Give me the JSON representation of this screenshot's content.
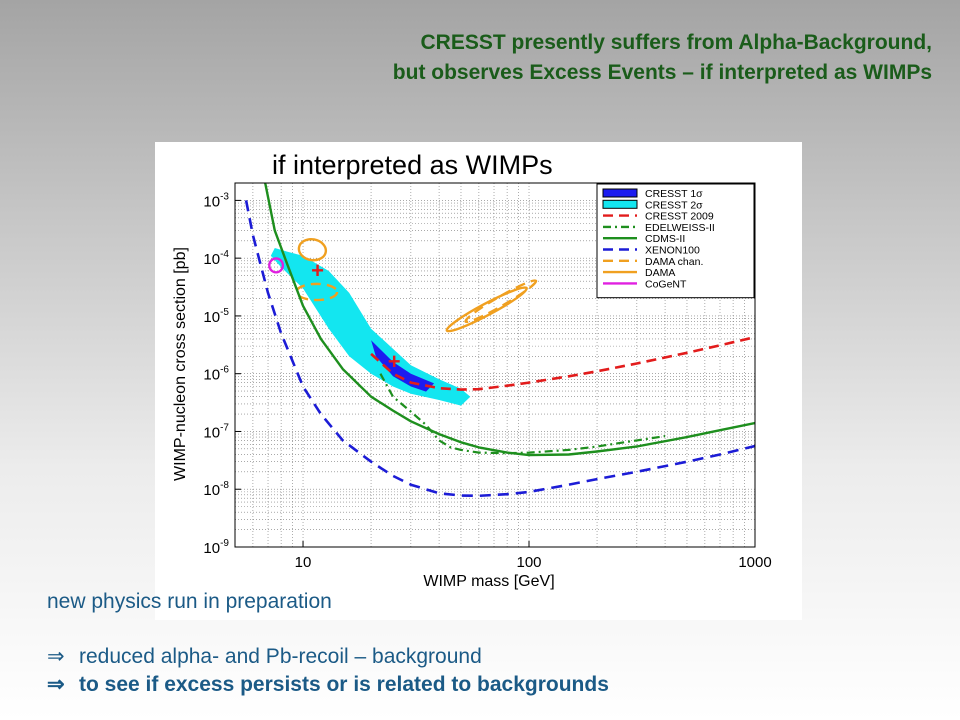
{
  "title_lines": [
    "CRESST presently suffers from Alpha-Background,",
    "but observes Excess Events – if interpreted as WIMPs"
  ],
  "chart_data": {
    "type": "line",
    "title": "if interpreted as WIMPs",
    "xlabel": "WIMP mass [GeV]",
    "ylabel": "WIMP-nucleon cross section [pb]",
    "xscale": "log",
    "yscale": "log",
    "xlim": [
      5,
      1000
    ],
    "ylim": [
      1e-09,
      0.002
    ],
    "x_ticks": [
      10,
      100,
      1000
    ],
    "x_tick_labels": [
      "10",
      "100",
      "1000"
    ],
    "y_ticks": [
      1e-09,
      1e-08,
      1e-07,
      1e-06,
      1e-05,
      0.0001,
      0.001
    ],
    "y_tick_labels": [
      {
        "base": "10",
        "exp": "-9"
      },
      {
        "base": "10",
        "exp": "-8"
      },
      {
        "base": "10",
        "exp": "-7"
      },
      {
        "base": "10",
        "exp": "-6"
      },
      {
        "base": "10",
        "exp": "-5"
      },
      {
        "base": "10",
        "exp": "-4"
      },
      {
        "base": "10",
        "exp": "-3"
      }
    ],
    "grid": true,
    "legend_position": "top-right",
    "legend": [
      {
        "label": "CRESST 1",
        "symbol": "σ",
        "kind": "fill",
        "fill": "#1c1cf0",
        "stroke": "#000000"
      },
      {
        "label": "CRESST 2",
        "symbol": "σ",
        "kind": "fill",
        "fill": "#13e6f0",
        "stroke": "#000000"
      },
      {
        "label": "CRESST 2009",
        "symbol": "",
        "kind": "line",
        "color": "#e21c1c",
        "dash": "10,6"
      },
      {
        "label": "EDELWEISS-II",
        "symbol": "",
        "kind": "line",
        "color": "#1e8f1e",
        "dash": "8,4,2,4"
      },
      {
        "label": "CDMS-II",
        "symbol": "",
        "kind": "line",
        "color": "#1e8f1e",
        "dash": ""
      },
      {
        "label": "XENON100",
        "symbol": "",
        "kind": "line",
        "color": "#1c1cd6",
        "dash": "10,6"
      },
      {
        "label": "DAMA chan.",
        "symbol": "",
        "kind": "line",
        "color": "#f0a020",
        "dash": "10,6"
      },
      {
        "label": "DAMA",
        "symbol": "",
        "kind": "line",
        "color": "#f0a020",
        "dash": ""
      },
      {
        "label": "CoGeNT",
        "symbol": "",
        "kind": "line",
        "color": "#e020e0",
        "dash": ""
      }
    ],
    "series": [
      {
        "name": "CRESST 2009",
        "color": "#e21c1c",
        "dash": "10,6",
        "width": 2.6,
        "x": [
          20,
          25,
          30,
          40,
          50,
          60,
          80,
          100,
          150,
          200,
          300,
          500,
          700,
          1000
        ],
        "y": [
          2.2e-06,
          1e-06,
          7e-07,
          5.6e-07,
          5.3e-07,
          5.4e-07,
          6.2e-07,
          7e-07,
          9e-07,
          1.1e-06,
          1.5e-06,
          2.3e-06,
          3.1e-06,
          4.3e-06
        ]
      },
      {
        "name": "EDELWEISS-II",
        "color": "#1e8f1e",
        "dash": "8,4,2,4",
        "width": 2.2,
        "x": [
          22,
          25,
          30,
          35,
          40,
          45,
          50,
          60,
          80,
          100,
          150,
          200,
          300,
          400
        ],
        "y": [
          1e-06,
          4e-07,
          2.2e-07,
          1.3e-07,
          7e-08,
          5.3e-08,
          4.8e-08,
          4.3e-08,
          4.2e-08,
          4.3e-08,
          4.8e-08,
          5.5e-08,
          7e-08,
          8.3e-08
        ]
      },
      {
        "name": "CDMS-II",
        "color": "#1e8f1e",
        "dash": "",
        "width": 2.4,
        "x": [
          6.8,
          7.5,
          8.5,
          10,
          12,
          15,
          20,
          25,
          30,
          40,
          50,
          60,
          80,
          100,
          150,
          200,
          300,
          500,
          700,
          1000
        ],
        "y": [
          0.002,
          0.0003,
          8e-05,
          1.5e-05,
          4e-06,
          1.2e-06,
          4e-07,
          2.3e-07,
          1.5e-07,
          9e-08,
          6.5e-08,
          5.3e-08,
          4.3e-08,
          3.9e-08,
          4e-08,
          4.5e-08,
          5.5e-08,
          8e-08,
          1.05e-07,
          1.4e-07
        ]
      },
      {
        "name": "XENON100",
        "color": "#1c1cd6",
        "dash": "11,7",
        "width": 2.6,
        "x": [
          5.6,
          6,
          7,
          8,
          10,
          12,
          15,
          20,
          25,
          30,
          40,
          50,
          60,
          80,
          100,
          150,
          200,
          300,
          500,
          700,
          1000
        ],
        "y": [
          0.001,
          0.00025,
          2.5e-05,
          5e-06,
          6e-07,
          2e-07,
          7e-08,
          3e-08,
          1.7e-08,
          1.2e-08,
          8.5e-09,
          7.8e-09,
          7.7e-09,
          8.2e-09,
          9e-09,
          1.2e-08,
          1.5e-08,
          2e-08,
          3e-08,
          4e-08,
          5.6e-08
        ]
      }
    ],
    "regions": [
      {
        "name": "CRESST 2σ",
        "color": "#13e6f0",
        "x": [
          7.5,
          8.5,
          10,
          13,
          16,
          20,
          30,
          40,
          50,
          55,
          50,
          40,
          30,
          25,
          20,
          16,
          13,
          10,
          8,
          7.2
        ],
        "y": [
          0.00015,
          0.00013,
          0.00011,
          6e-05,
          2.5e-05,
          6e-06,
          1.4e-06,
          8e-07,
          5.5e-07,
          4e-07,
          2.8e-07,
          3.5e-07,
          4.5e-07,
          6e-07,
          1e-06,
          2e-06,
          6e-06,
          3e-05,
          7e-05,
          0.00011
        ]
      },
      {
        "name": "CRESST 1σ",
        "color": "#1c1cf0",
        "x": [
          20,
          25,
          30,
          38,
          35,
          30,
          25,
          21
        ],
        "y": [
          3.8e-06,
          1.6e-06,
          1e-06,
          6.8e-07,
          4.9e-07,
          6e-07,
          9e-07,
          2e-06
        ]
      }
    ],
    "outlines": [
      {
        "name": "DAMA",
        "color": "#f0a020",
        "dash": "",
        "shape": "ellipse",
        "center": [
          11,
          0.00014
        ],
        "rx_decades": 0.06,
        "ry_decades": 0.18,
        "rotate": 10
      },
      {
        "name": "DAMA",
        "color": "#f0a020",
        "dash": "",
        "shape": "ellipse",
        "center": [
          65,
          1.3e-05
        ],
        "rx_decades": 0.2,
        "ry_decades": 0.1,
        "rotate": -28
      },
      {
        "name": "DAMA chan.",
        "color": "#f0a020",
        "dash": "10,6",
        "shape": "ellipse",
        "center": [
          11.5,
          2.6e-05
        ],
        "rx_decades": 0.09,
        "ry_decades": 0.14,
        "rotate": 0
      },
      {
        "name": "DAMA chan.",
        "color": "#f0a020",
        "dash": "10,6",
        "shape": "ellipse",
        "center": [
          75,
          1.8e-05
        ],
        "rx_decades": 0.18,
        "ry_decades": 0.08,
        "rotate": -30
      },
      {
        "name": "CoGeNT",
        "color": "#e020e0",
        "dash": "",
        "shape": "ellipse",
        "center": [
          7.6,
          7.5e-05
        ],
        "rx_decades": 0.03,
        "ry_decades": 0.12,
        "rotate": 0
      }
    ],
    "markers": [
      {
        "name": "best-fit-1",
        "x": 11.6,
        "y": 6e-05,
        "color": "#e21c1c",
        "symbol": "+"
      },
      {
        "name": "best-fit-2",
        "x": 25.3,
        "y": 1.6e-06,
        "color": "#e21c1c",
        "symbol": "+"
      }
    ]
  },
  "footer": {
    "note": "new physics run in preparation",
    "bullet_symbol": "⇒",
    "bullets": [
      "reduced alpha- and Pb-recoil – background",
      "to see if excess persists or is related to backgrounds"
    ]
  }
}
